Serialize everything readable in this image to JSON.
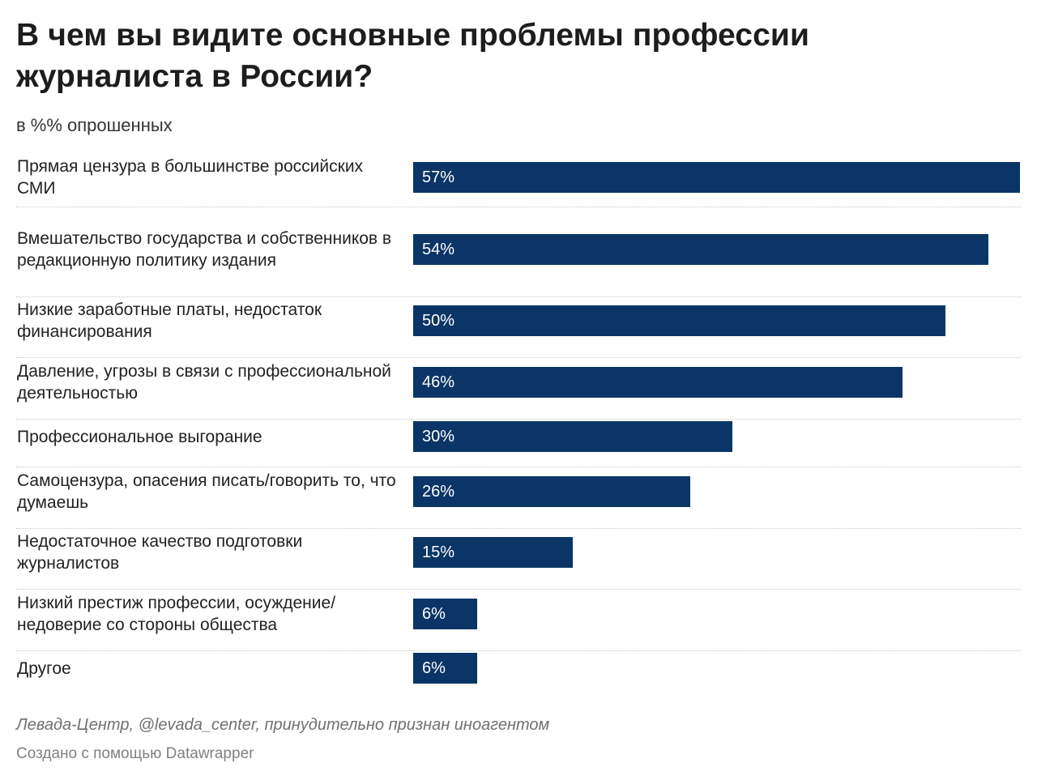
{
  "chart_data": {
    "type": "bar",
    "orientation": "horizontal",
    "title": "В чем вы видите основные проблемы профессии журналиста в России?",
    "subtitle": "в %% опрошенных",
    "categories": [
      "Прямая цензура в большинстве российских СМИ",
      "Вмешательство государства и собственников в редакционную политику издания",
      "Низкие заработные платы, недостаток финансирования",
      "Давление, угрозы в связи с профессиональной деятельностью",
      "Профессиональное выгорание",
      "Самоцензура, опасения писать/говорить то, что думаешь",
      "Недостаточное качество подготовки журналистов",
      "Низкий престиж профессии, осуждение/ недоверие со стороны общества",
      "Другое"
    ],
    "values": [
      57,
      54,
      50,
      46,
      30,
      26,
      15,
      6,
      6
    ],
    "value_labels": [
      "57%",
      "54%",
      "50%",
      "46%",
      "30%",
      "26%",
      "15%",
      "6%",
      "6%"
    ],
    "xlim": [
      0,
      57
    ],
    "bar_color": "#0b3566",
    "grid": false,
    "source": "Левада-Центр, @levada_center, принудительно признан иноагентом",
    "credit": "Создано с помощью Datawrapper"
  }
}
